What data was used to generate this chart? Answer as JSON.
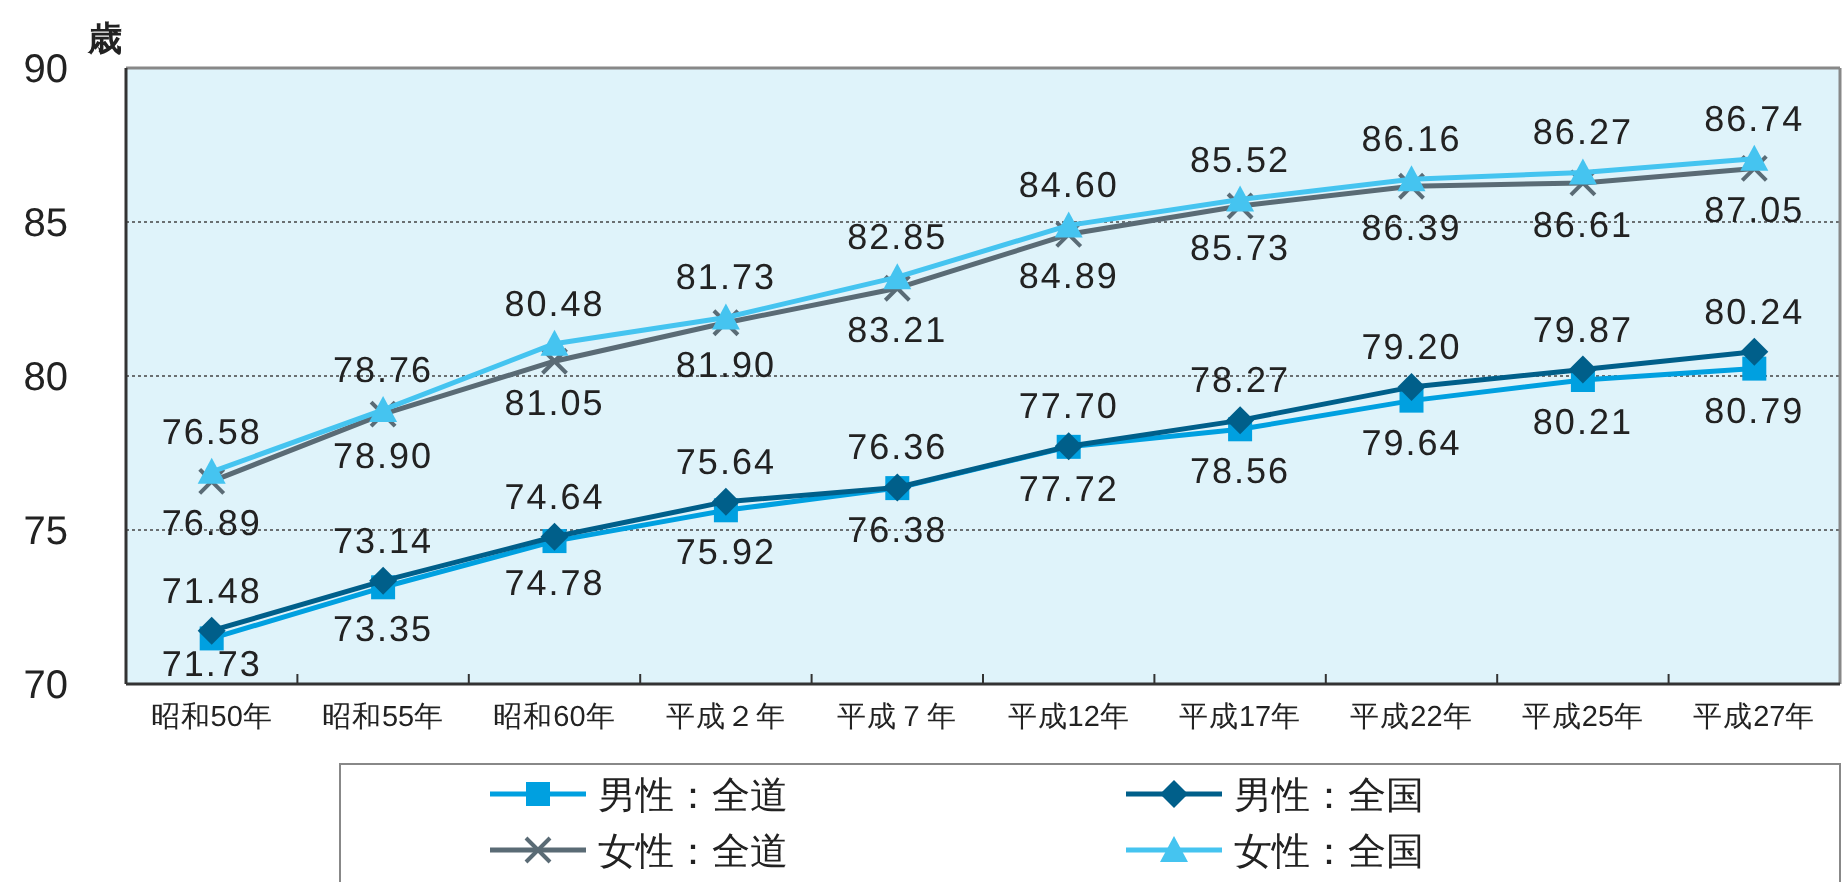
{
  "chart_data": {
    "type": "line",
    "ylabel": "歳",
    "categories": [
      "昭和50年",
      "昭和55年",
      "昭和60年",
      "平成２年",
      "平成７年",
      "平成12年",
      "平成17年",
      "平成22年",
      "平成25年",
      "平成27年"
    ],
    "ylim": [
      70,
      90
    ],
    "yticks": [
      70,
      75,
      80,
      85,
      90
    ],
    "grid": "y",
    "legend": "bottom",
    "series": [
      {
        "name": "男性：全道",
        "color": "#00a0e0",
        "marker": "square",
        "values": [
          71.48,
          73.14,
          74.64,
          75.64,
          76.36,
          77.7,
          78.27,
          79.2,
          79.87,
          80.24
        ],
        "value_labels": [
          "71.48",
          "73.14",
          "74.64",
          "75.64",
          "76.36",
          "77.70",
          "78.27",
          "79.20",
          "79.87",
          "80.24"
        ]
      },
      {
        "name": "男性：全国",
        "color": "#005f8a",
        "marker": "diamond",
        "values": [
          71.73,
          73.35,
          74.78,
          75.92,
          76.38,
          77.72,
          78.56,
          79.64,
          80.21,
          80.79
        ],
        "value_labels": [
          "71.73",
          "73.35",
          "74.78",
          "75.92",
          "76.38",
          "77.72",
          "78.56",
          "79.64",
          "80.21",
          "80.79"
        ]
      },
      {
        "name": "女性：全道",
        "color": "#5a6b75",
        "marker": "cross",
        "values": [
          76.58,
          78.76,
          80.48,
          81.73,
          82.85,
          84.6,
          85.52,
          86.16,
          86.27,
          86.74
        ],
        "value_labels": [
          "76.58",
          "78.76",
          "80.48",
          "81.73",
          "82.85",
          "84.60",
          "85.52",
          "86.16",
          "86.27",
          "86.74"
        ]
      },
      {
        "name": "女性：全国",
        "color": "#45c4f0",
        "marker": "triangle",
        "values": [
          76.89,
          78.9,
          81.05,
          81.9,
          83.21,
          84.89,
          85.73,
          86.39,
          86.61,
          87.05
        ],
        "value_labels": [
          "76.89",
          "78.90",
          "81.05",
          "81.90",
          "83.21",
          "84.89",
          "85.73",
          "86.39",
          "86.61",
          "87.05"
        ]
      }
    ]
  }
}
